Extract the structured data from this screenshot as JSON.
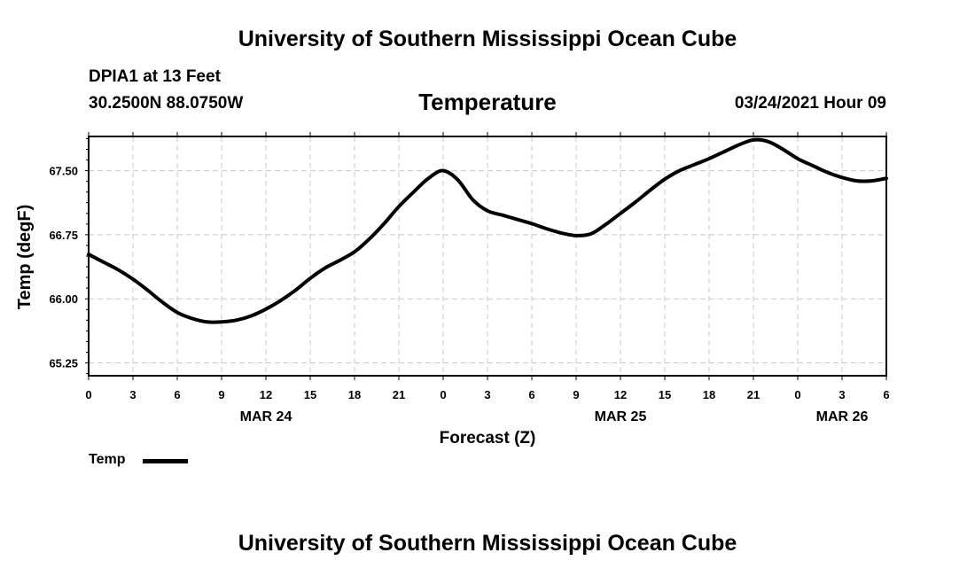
{
  "header": {
    "top_title": "University of Southern Mississippi Ocean Cube",
    "station": "DPIA1 at 13 Feet",
    "coordinates": "30.2500N 88.0750W",
    "chart_title": "Temperature",
    "datetime": "03/24/2021 Hour 09"
  },
  "footer": {
    "bottom_title": "University of Southern Mississippi Ocean Cube"
  },
  "legend": {
    "label": "Temp"
  },
  "colors": {
    "line": "#000000",
    "grid": "#c8c8c8"
  },
  "chart_data": {
    "type": "line",
    "title": "Temperature",
    "xlabel": "Forecast (Z)",
    "ylabel": "Temp (degF)",
    "xlim": [
      0,
      54
    ],
    "ylim": [
      65.1,
      67.9
    ],
    "grid": true,
    "yticks": [
      {
        "value": 65.25,
        "label": "65.25"
      },
      {
        "value": 66.0,
        "label": "66.00"
      },
      {
        "value": 66.75,
        "label": "66.75"
      },
      {
        "value": 67.5,
        "label": "67.50"
      }
    ],
    "xticks": [
      {
        "value": 0,
        "label": "0"
      },
      {
        "value": 3,
        "label": "3"
      },
      {
        "value": 6,
        "label": "6"
      },
      {
        "value": 9,
        "label": "9"
      },
      {
        "value": 12,
        "label": "12"
      },
      {
        "value": 15,
        "label": "15"
      },
      {
        "value": 18,
        "label": "18"
      },
      {
        "value": 21,
        "label": "21"
      },
      {
        "value": 24,
        "label": "0"
      },
      {
        "value": 27,
        "label": "3"
      },
      {
        "value": 30,
        "label": "6"
      },
      {
        "value": 33,
        "label": "9"
      },
      {
        "value": 36,
        "label": "12"
      },
      {
        "value": 39,
        "label": "15"
      },
      {
        "value": 42,
        "label": "18"
      },
      {
        "value": 45,
        "label": "21"
      },
      {
        "value": 48,
        "label": "0"
      },
      {
        "value": 51,
        "label": "3"
      },
      {
        "value": 54,
        "label": "6"
      }
    ],
    "date_labels": [
      {
        "value": 12,
        "label": "MAR 24"
      },
      {
        "value": 36,
        "label": "MAR 25"
      },
      {
        "value": 51,
        "label": "MAR 26"
      }
    ],
    "series": [
      {
        "name": "Temp",
        "x": [
          0,
          1,
          2,
          3,
          4,
          5,
          6,
          7,
          8,
          9,
          10,
          11,
          12,
          13,
          14,
          15,
          16,
          17,
          18,
          19,
          20,
          21,
          22,
          23,
          24,
          25,
          26,
          27,
          28,
          29,
          30,
          31,
          32,
          33,
          34,
          35,
          36,
          37,
          38,
          39,
          40,
          41,
          42,
          43,
          44,
          45,
          46,
          47,
          48,
          49,
          50,
          51,
          52,
          53,
          54
        ],
        "values": [
          66.52,
          66.43,
          66.34,
          66.23,
          66.1,
          65.96,
          65.84,
          65.77,
          65.73,
          65.73,
          65.75,
          65.8,
          65.88,
          65.98,
          66.1,
          66.24,
          66.36,
          66.45,
          66.55,
          66.7,
          66.88,
          67.08,
          67.25,
          67.41,
          67.5,
          67.39,
          67.16,
          67.03,
          66.98,
          66.93,
          66.88,
          66.82,
          66.77,
          66.74,
          66.76,
          66.87,
          67.0,
          67.13,
          67.27,
          67.4,
          67.5,
          67.57,
          67.64,
          67.72,
          67.8,
          67.86,
          67.84,
          67.75,
          67.64,
          67.56,
          67.48,
          67.42,
          67.38,
          67.38,
          67.41
        ]
      }
    ]
  }
}
